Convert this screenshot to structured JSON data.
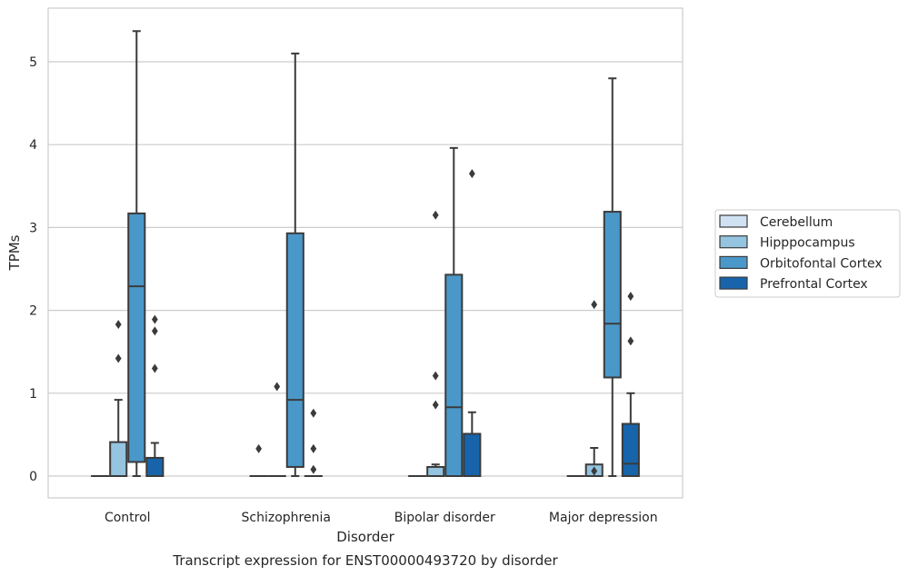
{
  "chart_data": {
    "type": "box",
    "title": "Transcript expression for ENST00000493720 by disorder",
    "xlabel": "Disorder",
    "ylabel": "TPMs",
    "ylim": [
      -0.26,
      5.63
    ],
    "yticks": [
      0,
      1,
      2,
      3,
      4,
      5
    ],
    "grid": "horizontal",
    "legend_position": "right",
    "categories": [
      "Control",
      "Schizophrenia",
      "Bipolar disorder",
      "Major depression"
    ],
    "series": [
      {
        "name": "Cerebellum",
        "color": "#d0e1f2",
        "boxes": [
          {
            "min": 0,
            "q1": 0,
            "median": 0,
            "q3": 0,
            "max": 0,
            "outliers": []
          },
          {
            "min": 0,
            "q1": 0,
            "median": 0,
            "q3": 0,
            "max": 0,
            "outliers": [
              0.33
            ]
          },
          {
            "min": 0,
            "q1": 0,
            "median": 0,
            "q3": 0,
            "max": 0,
            "outliers": []
          },
          {
            "min": 0,
            "q1": 0,
            "median": 0,
            "q3": 0,
            "max": 0,
            "outliers": []
          }
        ]
      },
      {
        "name": "Hipppocampus",
        "color": "#94c4df",
        "boxes": [
          {
            "min": 0,
            "q1": 0,
            "median": 0,
            "q3": 0.41,
            "max": 0.92,
            "outliers": [
              1.42,
              1.83
            ]
          },
          {
            "min": 0,
            "q1": 0,
            "median": 0,
            "q3": 0,
            "max": 0,
            "outliers": [
              1.08
            ]
          },
          {
            "min": 0,
            "q1": 0,
            "median": 0,
            "q3": 0.11,
            "max": 0.14,
            "outliers": [
              0.86,
              1.21,
              3.15
            ]
          },
          {
            "min": 0,
            "q1": 0,
            "median": 0,
            "q3": 0.14,
            "max": 0.34,
            "outliers": [
              0.06,
              2.07
            ]
          }
        ]
      },
      {
        "name": "Orbitofontal Cortex",
        "color": "#4a98c9",
        "boxes": [
          {
            "min": 0,
            "q1": 0.17,
            "median": 2.29,
            "q3": 3.17,
            "max": 5.37,
            "outliers": []
          },
          {
            "min": 0,
            "q1": 0.11,
            "median": 0.92,
            "q3": 2.93,
            "max": 5.1,
            "outliers": []
          },
          {
            "min": 0,
            "q1": 0,
            "median": 0.83,
            "q3": 2.43,
            "max": 3.96,
            "outliers": []
          },
          {
            "min": 0,
            "q1": 1.19,
            "median": 1.84,
            "q3": 3.19,
            "max": 4.8,
            "outliers": []
          }
        ]
      },
      {
        "name": "Prefrontal Cortex",
        "color": "#1764ab",
        "boxes": [
          {
            "min": 0,
            "q1": 0,
            "median": 0,
            "q3": 0.22,
            "max": 0.4,
            "outliers": [
              1.3,
              1.75,
              1.89
            ]
          },
          {
            "min": 0,
            "q1": 0,
            "median": 0,
            "q3": 0,
            "max": 0,
            "outliers": [
              0.08,
              0.33,
              0.76
            ]
          },
          {
            "min": 0,
            "q1": 0,
            "median": 0,
            "q3": 0.51,
            "max": 0.77,
            "outliers": [
              3.65
            ]
          },
          {
            "min": 0,
            "q1": 0,
            "median": 0.15,
            "q3": 0.63,
            "max": 1.0,
            "outliers": [
              1.63,
              2.17
            ]
          }
        ]
      }
    ]
  }
}
